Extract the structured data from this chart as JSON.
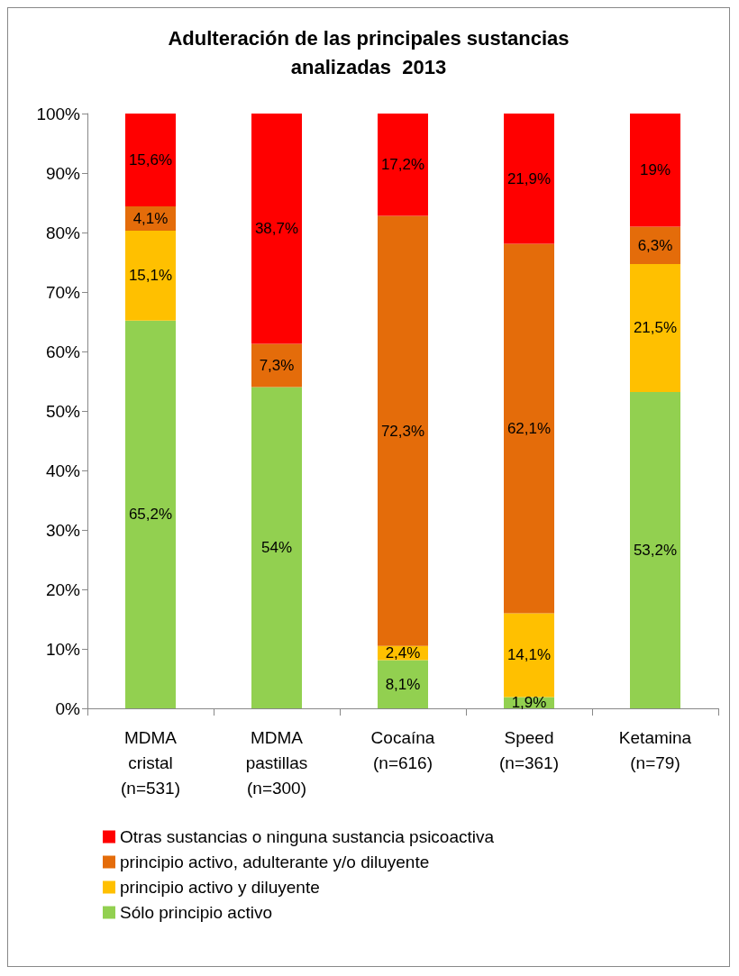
{
  "chart_data": {
    "type": "bar",
    "stacked": true,
    "title": "Adulteración de las principales sustancias\nanalizadas  2013",
    "categories": [
      "MDMA\ncristal\n(n=531)",
      "MDMA\npastillas\n(n=300)",
      "Cocaína\n(n=616)",
      "Speed\n(n=361)",
      "Ketamina\n(n=79)"
    ],
    "series": [
      {
        "name": "Sólo principio activo",
        "color": "#92d050",
        "values": [
          65.2,
          54,
          8.1,
          1.9,
          53.2
        ],
        "value_labels": [
          "65,2%",
          "54%",
          "8,1%",
          "1,9%",
          "53,2%"
        ]
      },
      {
        "name": "principio activo y diluyente",
        "color": "#ffc000",
        "values": [
          15.1,
          null,
          2.4,
          14.1,
          21.5
        ],
        "value_labels": [
          "15,1%",
          null,
          "2,4%",
          "14,1%",
          "21,5%"
        ]
      },
      {
        "name": "principio activo, adulterante y/o diluyente",
        "color": "#e46c0a",
        "values": [
          4.1,
          7.3,
          72.3,
          62.1,
          6.3
        ],
        "value_labels": [
          "4,1%",
          "7,3%",
          "72,3%",
          "62,1%",
          "6,3%"
        ]
      },
      {
        "name": "Otras sustancias o ninguna sustancia psicoactiva",
        "color": "#ff0000",
        "values": [
          15.6,
          38.7,
          17.2,
          21.9,
          19
        ],
        "value_labels": [
          "15,6%",
          "38,7%",
          "17,2%",
          "21,9%",
          "19%"
        ]
      }
    ],
    "ylim": [
      0,
      100
    ],
    "yticks": [
      {
        "value": 0,
        "label": "0%"
      },
      {
        "value": 10,
        "label": "10%"
      },
      {
        "value": 20,
        "label": "20%"
      },
      {
        "value": 30,
        "label": "30%"
      },
      {
        "value": 40,
        "label": "40%"
      },
      {
        "value": 50,
        "label": "50%"
      },
      {
        "value": 60,
        "label": "60%"
      },
      {
        "value": 70,
        "label": "70%"
      },
      {
        "value": 80,
        "label": "80%"
      },
      {
        "value": 90,
        "label": "90%"
      },
      {
        "value": 100,
        "label": "100%"
      }
    ],
    "grid": false,
    "legend": "bottom left"
  }
}
